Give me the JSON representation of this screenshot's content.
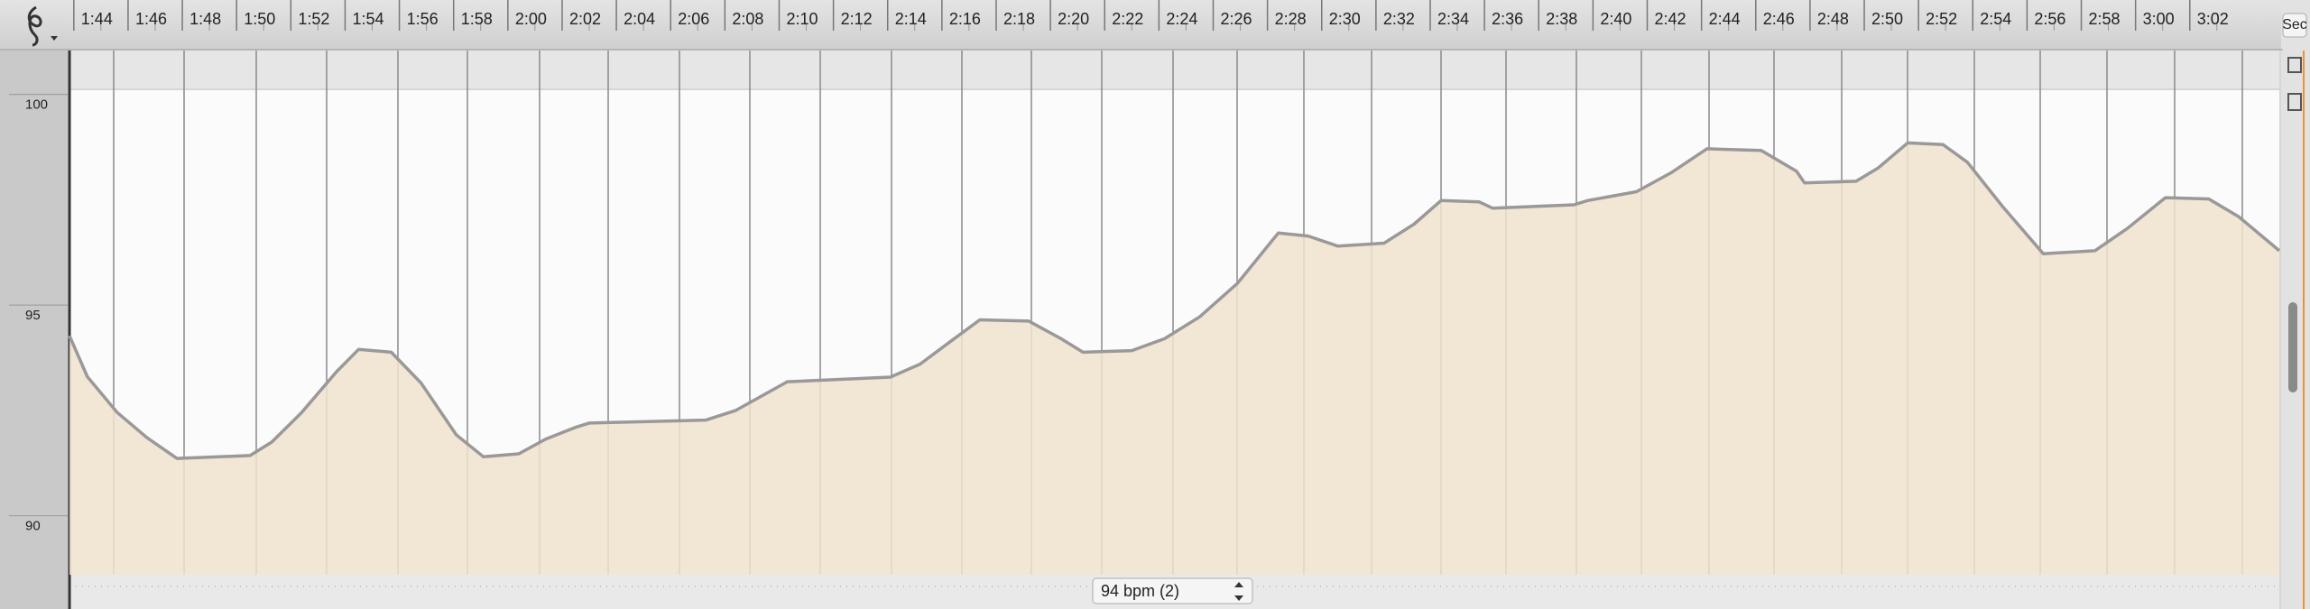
{
  "chart_data": {
    "type": "area",
    "x": [
      103.84,
      104.5,
      105.6,
      106.7,
      107.8,
      110.5,
      111.3,
      112.4,
      113.7,
      114.5,
      115.7,
      116.8,
      118.1,
      119.1,
      120.4,
      121.4,
      122.5,
      123.0,
      127.3,
      128.4,
      130.3,
      134.1,
      135.2,
      136.3,
      137.4,
      139.2,
      140.4,
      141.2,
      143.0,
      144.2,
      145.5,
      146.9,
      148.4,
      149.5,
      150.6,
      152.3,
      153.4,
      154.4,
      155.8,
      156.3,
      159.3,
      159.8,
      161.6,
      162.9,
      164.2,
      166.2,
      167.5,
      167.8,
      169.7,
      170.5,
      171.6,
      172.9,
      173.8,
      175.1,
      176.6,
      178.5,
      179.7,
      181.1,
      182.7,
      183.8,
      185.3
    ],
    "values": [
      94.27,
      93.3,
      92.45,
      91.85,
      91.36,
      91.43,
      91.75,
      92.45,
      93.43,
      93.95,
      93.88,
      93.15,
      91.92,
      91.4,
      91.47,
      91.82,
      92.1,
      92.2,
      92.27,
      92.5,
      93.18,
      93.29,
      93.6,
      94.13,
      94.65,
      94.62,
      94.2,
      93.88,
      93.92,
      94.2,
      94.72,
      95.52,
      96.71,
      96.64,
      96.4,
      96.47,
      96.92,
      97.48,
      97.45,
      97.3,
      97.38,
      97.48,
      97.69,
      98.15,
      98.71,
      98.67,
      98.18,
      97.9,
      97.94,
      98.25,
      98.85,
      98.81,
      98.39,
      97.34,
      96.22,
      96.29,
      96.82,
      97.55,
      97.52,
      97.1,
      96.29
    ],
    "xlim": [
      103.84,
      185.3
    ],
    "ylim": [
      88.6,
      100.1
    ],
    "xticks": [
      {
        "value": 104,
        "label": "1:44"
      },
      {
        "value": 106,
        "label": "1:46"
      },
      {
        "value": 108,
        "label": "1:48"
      },
      {
        "value": 110,
        "label": "1:50"
      },
      {
        "value": 112,
        "label": "1:52"
      },
      {
        "value": 114,
        "label": "1:54"
      },
      {
        "value": 116,
        "label": "1:56"
      },
      {
        "value": 118,
        "label": "1:58"
      },
      {
        "value": 120,
        "label": "2:00"
      },
      {
        "value": 122,
        "label": "2:02"
      },
      {
        "value": 124,
        "label": "2:04"
      },
      {
        "value": 126,
        "label": "2:06"
      },
      {
        "value": 128,
        "label": "2:08"
      },
      {
        "value": 130,
        "label": "2:10"
      },
      {
        "value": 132,
        "label": "2:12"
      },
      {
        "value": 134,
        "label": "2:14"
      },
      {
        "value": 136,
        "label": "2:16"
      },
      {
        "value": 138,
        "label": "2:18"
      },
      {
        "value": 140,
        "label": "2:20"
      },
      {
        "value": 142,
        "label": "2:22"
      },
      {
        "value": 144,
        "label": "2:24"
      },
      {
        "value": 146,
        "label": "2:26"
      },
      {
        "value": 148,
        "label": "2:28"
      },
      {
        "value": 150,
        "label": "2:30"
      },
      {
        "value": 152,
        "label": "2:32"
      },
      {
        "value": 154,
        "label": "2:34"
      },
      {
        "value": 156,
        "label": "2:36"
      },
      {
        "value": 158,
        "label": "2:38"
      },
      {
        "value": 160,
        "label": "2:40"
      },
      {
        "value": 162,
        "label": "2:42"
      },
      {
        "value": 164,
        "label": "2:44"
      },
      {
        "value": 166,
        "label": "2:46"
      },
      {
        "value": 168,
        "label": "2:48"
      },
      {
        "value": 170,
        "label": "2:50"
      },
      {
        "value": 172,
        "label": "2:52"
      },
      {
        "value": 174,
        "label": "2:54"
      },
      {
        "value": 176,
        "label": "2:56"
      },
      {
        "value": 178,
        "label": "2:58"
      },
      {
        "value": 180,
        "label": "3:00"
      },
      {
        "value": 182,
        "label": "3:02"
      }
    ],
    "yticks": [
      90,
      95,
      100
    ],
    "color": "#efe3cd",
    "line_color": "#9a9898"
  },
  "ruler_unit": "Sec",
  "tempo_selector": "94 bpm (2)"
}
